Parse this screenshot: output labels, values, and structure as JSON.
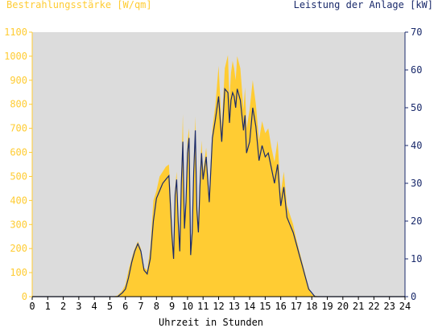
{
  "chart_data": {
    "type": "area",
    "left_axis_title": "Bestrahlungsstärke [W/qm]",
    "right_axis_title": "Leistung der Anlage [kW]",
    "x_axis_title": "Uhrzeit in Stunden",
    "x_range": [
      0,
      24
    ],
    "x_ticks": [
      "0",
      "1",
      "2",
      "3",
      "4",
      "5",
      "6",
      "7",
      "8",
      "9",
      "10",
      "11",
      "12",
      "13",
      "14",
      "15",
      "16",
      "17",
      "18",
      "19",
      "20",
      "21",
      "22",
      "23",
      "24"
    ],
    "left_ylim": [
      0,
      1100
    ],
    "left_ticks": [
      "0",
      "100",
      "200",
      "300",
      "400",
      "500",
      "600",
      "700",
      "800",
      "900",
      "1000",
      "1100"
    ],
    "right_ylim": [
      0,
      70
    ],
    "right_ticks": [
      "0",
      "10",
      "20",
      "30",
      "40",
      "50",
      "60",
      "70"
    ],
    "grid": false,
    "colors": {
      "irradiance": "#ffcc33",
      "power": "#1a2a6b",
      "left_axis_text": "#ffcc33",
      "right_axis_text": "#1a2a6b",
      "plot_bg": "#dcdcdc"
    },
    "series": [
      {
        "axis": "left",
        "x": [
          0,
          5.2,
          5.5,
          5.8,
          6.0,
          6.2,
          6.4,
          6.6,
          6.8,
          7.0,
          7.2,
          7.4,
          7.6,
          7.8,
          8.0,
          8.2,
          8.4,
          8.6,
          8.8,
          9.0,
          9.1,
          9.2,
          9.3,
          9.4,
          9.5,
          9.6,
          9.7,
          9.8,
          9.9,
          10.0,
          10.1,
          10.2,
          10.3,
          10.4,
          10.5,
          10.6,
          10.7,
          10.8,
          10.9,
          11.0,
          11.2,
          11.4,
          11.6,
          11.8,
          12.0,
          12.2,
          12.4,
          12.6,
          12.7,
          12.8,
          12.9,
          13.0,
          13.1,
          13.2,
          13.4,
          13.6,
          13.7,
          13.8,
          14.0,
          14.2,
          14.4,
          14.6,
          14.8,
          15.0,
          15.2,
          15.4,
          15.6,
          15.8,
          16.0,
          16.2,
          16.4,
          16.6,
          16.8,
          17.0,
          17.2,
          17.4,
          17.6,
          17.8,
          18.0,
          18.2,
          18.4,
          18.6,
          18.8,
          19.0,
          19.2,
          19.4,
          19.6,
          19.8,
          20.0,
          24
        ],
        "values": [
          0,
          0,
          5,
          25,
          50,
          110,
          160,
          200,
          230,
          200,
          120,
          110,
          200,
          400,
          440,
          500,
          520,
          540,
          550,
          300,
          180,
          450,
          520,
          350,
          200,
          500,
          760,
          300,
          420,
          650,
          700,
          200,
          300,
          550,
          750,
          400,
          300,
          500,
          650,
          520,
          620,
          420,
          700,
          800,
          960,
          700,
          950,
          1005,
          820,
          930,
          980,
          950,
          900,
          1000,
          950,
          780,
          870,
          700,
          780,
          900,
          800,
          650,
          730,
          680,
          700,
          620,
          560,
          650,
          430,
          520,
          380,
          340,
          300,
          240,
          190,
          140,
          90,
          40,
          10,
          5,
          0,
          0,
          0,
          0,
          0,
          0,
          0,
          0,
          0,
          0
        ]
      },
      {
        "axis": "right",
        "x": [
          0,
          5.2,
          5.5,
          5.8,
          6.0,
          6.2,
          6.4,
          6.6,
          6.8,
          7.0,
          7.2,
          7.4,
          7.6,
          7.8,
          8.0,
          8.2,
          8.4,
          8.6,
          8.8,
          9.0,
          9.1,
          9.2,
          9.3,
          9.4,
          9.5,
          9.6,
          9.7,
          9.8,
          9.9,
          10.0,
          10.1,
          10.2,
          10.3,
          10.4,
          10.5,
          10.6,
          10.7,
          10.8,
          10.9,
          11.0,
          11.2,
          11.4,
          11.6,
          11.8,
          12.0,
          12.2,
          12.4,
          12.6,
          12.7,
          12.8,
          12.9,
          13.0,
          13.1,
          13.2,
          13.4,
          13.6,
          13.7,
          13.8,
          14.0,
          14.2,
          14.4,
          14.6,
          14.8,
          15.0,
          15.2,
          15.4,
          15.6,
          15.8,
          16.0,
          16.2,
          16.4,
          16.6,
          16.8,
          17.0,
          17.2,
          17.4,
          17.6,
          17.8,
          18.0,
          18.2,
          18.4,
          18.6,
          18.8,
          19.0,
          19.2,
          19.4,
          19.6,
          19.8,
          20.0,
          24
        ],
        "values": [
          0,
          0,
          0,
          1,
          2,
          5,
          9,
          12,
          14,
          12,
          7,
          6,
          10,
          20,
          26,
          28,
          30,
          31,
          32,
          16,
          10,
          27,
          31,
          20,
          12,
          30,
          41,
          18,
          25,
          38,
          42,
          11,
          17,
          33,
          44,
          23,
          17,
          29,
          38,
          31,
          37,
          25,
          42,
          47,
          53,
          41,
          55,
          54,
          46,
          52,
          54,
          53,
          50,
          55,
          52,
          44,
          48,
          38,
          41,
          50,
          45,
          36,
          40,
          37,
          38,
          34,
          30,
          35,
          24,
          29,
          21,
          19,
          17,
          14,
          11,
          8,
          5,
          2,
          1,
          0,
          0,
          0,
          0,
          0,
          0,
          0,
          0,
          0,
          0,
          0
        ]
      }
    ]
  }
}
